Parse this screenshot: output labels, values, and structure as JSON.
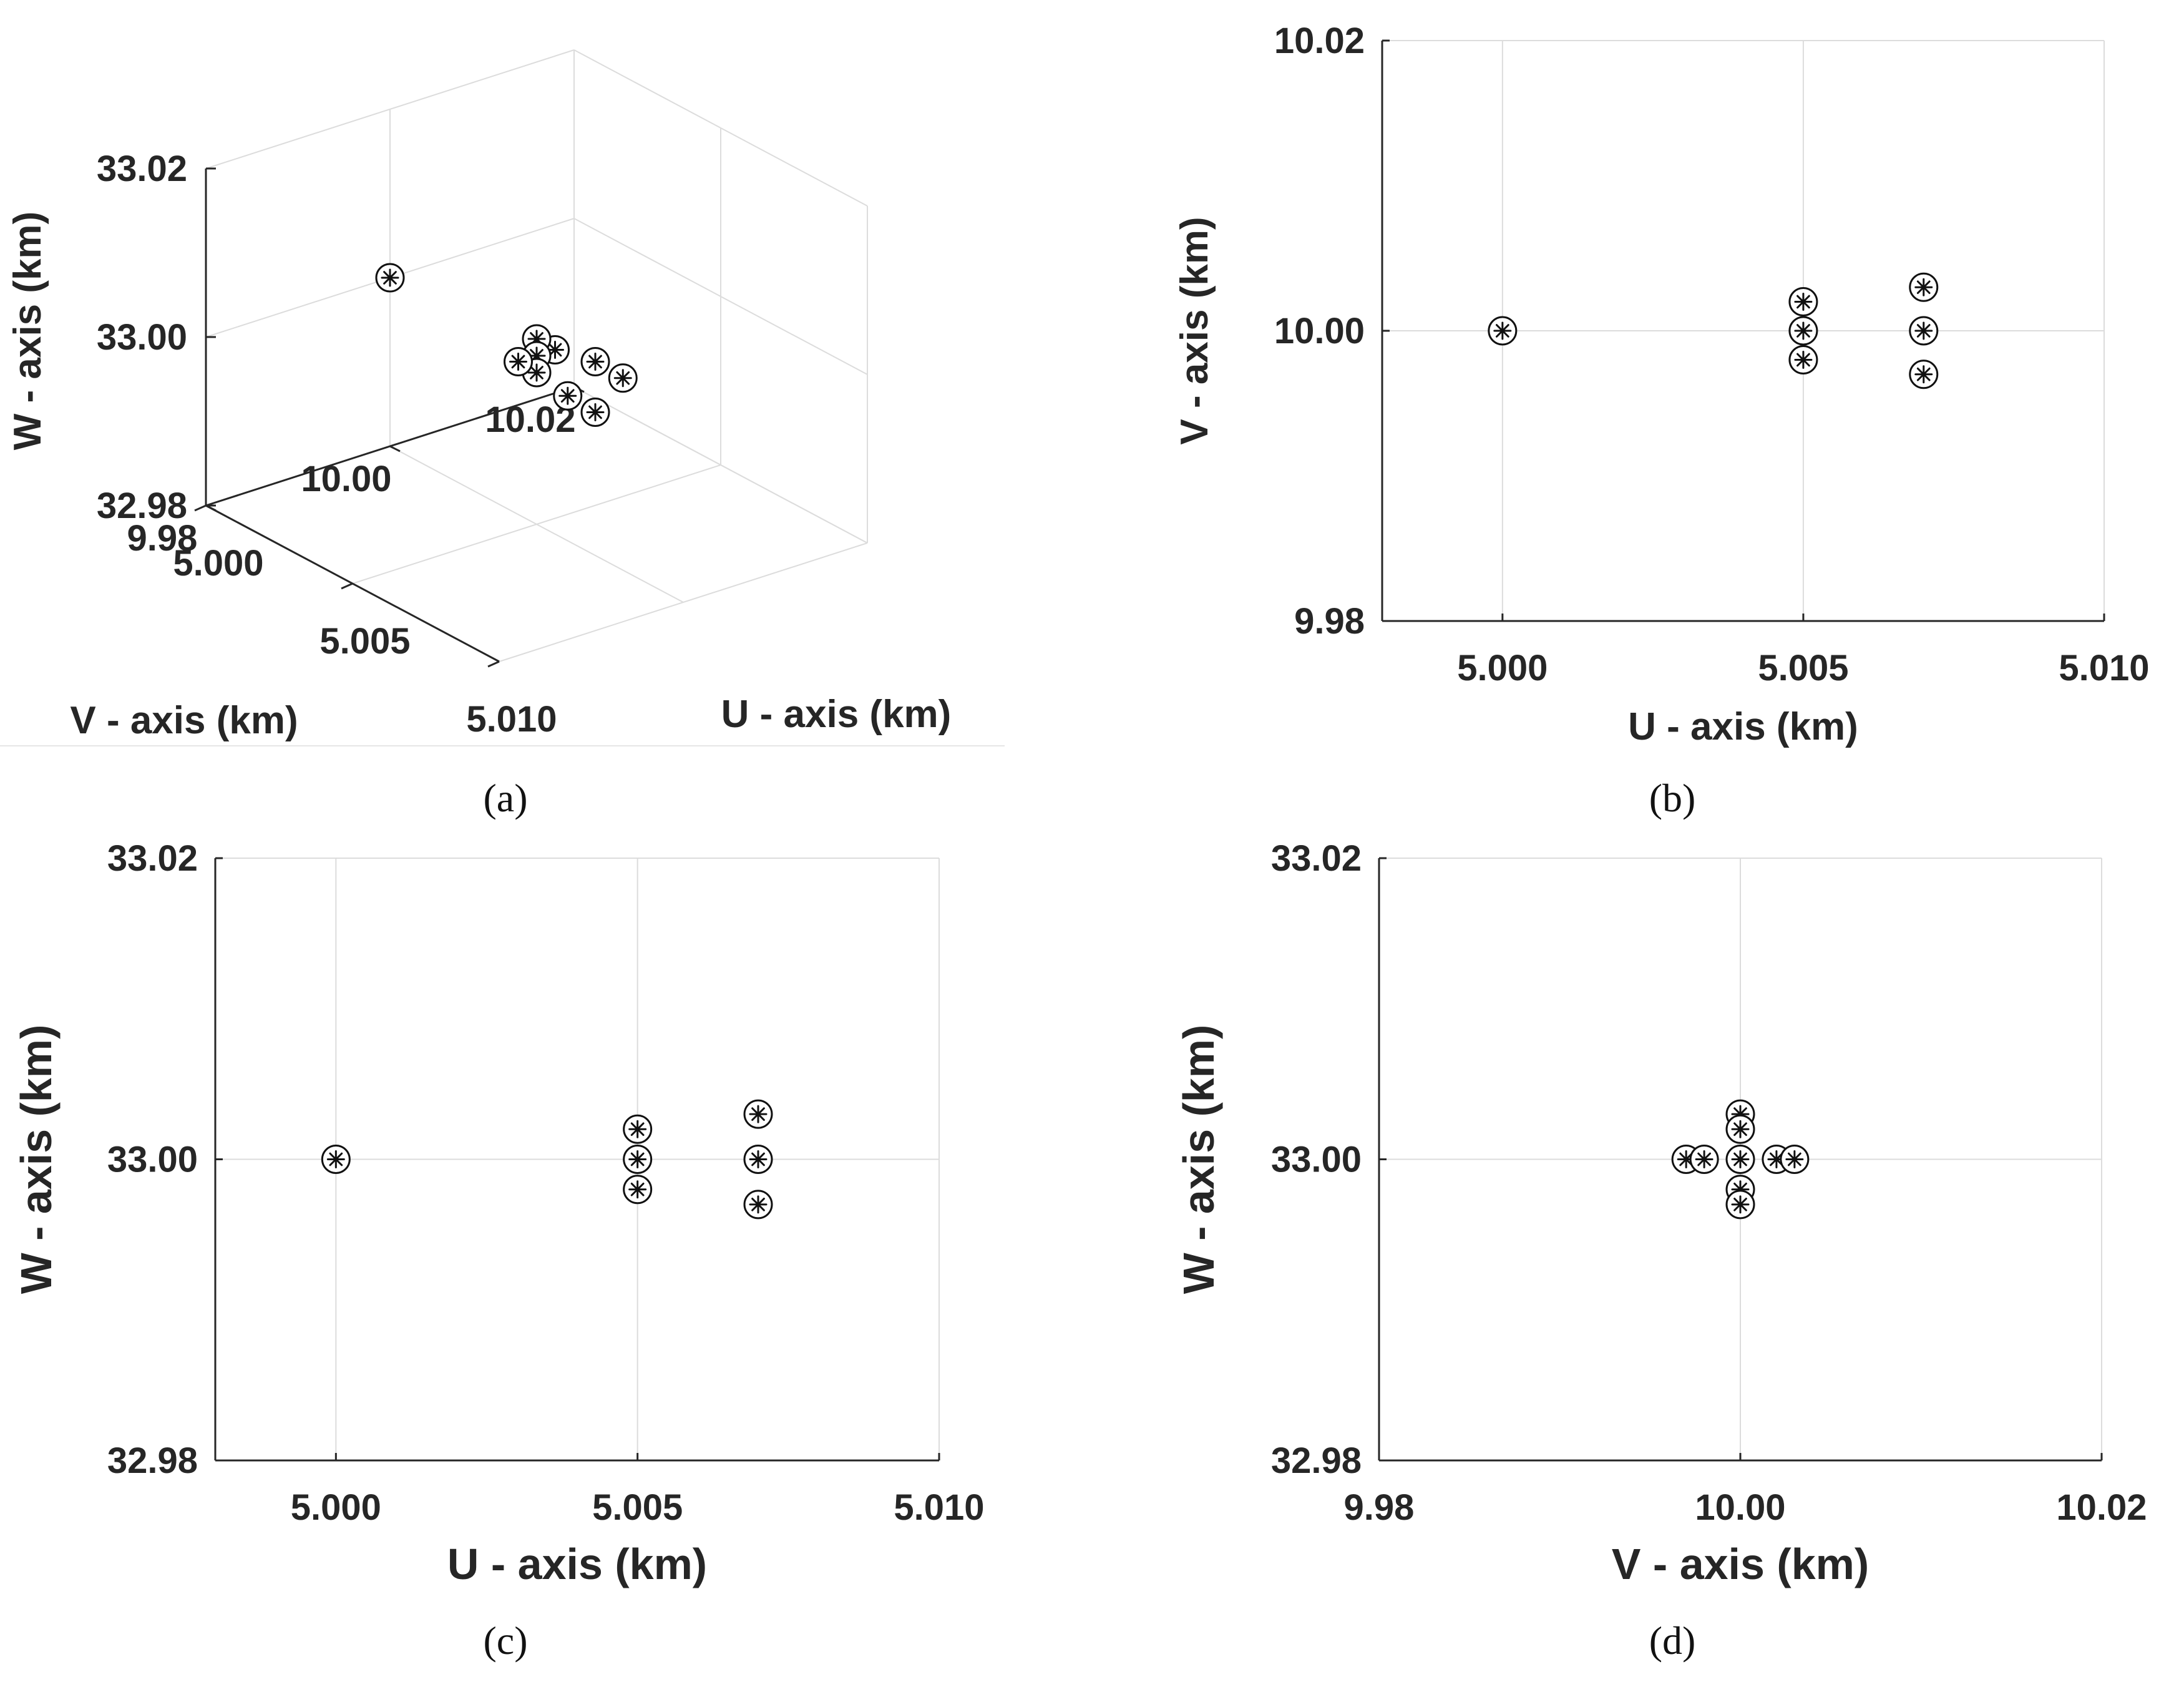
{
  "chart_data": [
    {
      "id": "a",
      "type": "scatter3d",
      "panel_label": "(a)",
      "xlabel": "U - axis (km)",
      "ylabel": "V - axis (km)",
      "zlabel": "W - axis (km)",
      "xlim": [
        5.0,
        5.01
      ],
      "ylim": [
        9.98,
        10.02
      ],
      "zlim": [
        32.98,
        33.02
      ],
      "x_ticks": [
        "5.000",
        "5.005",
        "5.010"
      ],
      "y_ticks": [
        "9.98",
        "10.00",
        "10.02"
      ],
      "z_ticks": [
        "32.98",
        "33.00",
        "33.02"
      ],
      "grid": true,
      "marker": "circled-asterisk",
      "points": [
        {
          "u": 5.0,
          "v": 10.0,
          "w": 33.0
        },
        {
          "u": 5.005,
          "v": 10.002,
          "w": 33.0
        },
        {
          "u": 5.005,
          "v": 10.0,
          "w": 33.002
        },
        {
          "u": 5.005,
          "v": 10.0,
          "w": 33.0
        },
        {
          "u": 5.005,
          "v": 10.0,
          "w": 32.998
        },
        {
          "u": 5.005,
          "v": 9.998,
          "w": 33.0
        },
        {
          "u": 5.007,
          "v": 10.003,
          "w": 33.0
        },
        {
          "u": 5.007,
          "v": 10.0,
          "w": 33.003
        },
        {
          "u": 5.007,
          "v": 10.0,
          "w": 32.997
        },
        {
          "u": 5.007,
          "v": 9.997,
          "w": 33.0
        }
      ]
    },
    {
      "id": "b",
      "type": "scatter",
      "panel_label": "(b)",
      "xlabel": "U - axis (km)",
      "ylabel": "V - axis (km)",
      "xlim": [
        4.998,
        5.01
      ],
      "ylim": [
        9.98,
        10.02
      ],
      "x_ticks": [
        {
          "value": 5.0,
          "label": "5.000"
        },
        {
          "value": 5.005,
          "label": "5.005"
        },
        {
          "value": 5.01,
          "label": "5.010"
        }
      ],
      "y_ticks": [
        {
          "value": 9.98,
          "label": "9.98"
        },
        {
          "value": 10.0,
          "label": "10.00"
        },
        {
          "value": 10.02,
          "label": "10.02"
        }
      ],
      "grid": true,
      "marker": "circled-asterisk",
      "points": [
        {
          "x": 5.0,
          "y": 10.0
        },
        {
          "x": 5.005,
          "y": 10.002
        },
        {
          "x": 5.005,
          "y": 10.0
        },
        {
          "x": 5.005,
          "y": 9.998
        },
        {
          "x": 5.007,
          "y": 10.003
        },
        {
          "x": 5.007,
          "y": 10.0
        },
        {
          "x": 5.007,
          "y": 9.997
        }
      ]
    },
    {
      "id": "c",
      "type": "scatter",
      "panel_label": "(c)",
      "xlabel": "U - axis (km)",
      "ylabel": "W - axis (km)",
      "xlim": [
        4.998,
        5.01
      ],
      "ylim": [
        32.98,
        33.02
      ],
      "x_ticks": [
        {
          "value": 5.0,
          "label": "5.000"
        },
        {
          "value": 5.005,
          "label": "5.005"
        },
        {
          "value": 5.01,
          "label": "5.010"
        }
      ],
      "y_ticks": [
        {
          "value": 32.98,
          "label": "32.98"
        },
        {
          "value": 33.0,
          "label": "33.00"
        },
        {
          "value": 33.02,
          "label": "33.02"
        }
      ],
      "grid": true,
      "marker": "circled-asterisk",
      "points": [
        {
          "x": 5.0,
          "y": 33.0
        },
        {
          "x": 5.005,
          "y": 33.002
        },
        {
          "x": 5.005,
          "y": 33.0
        },
        {
          "x": 5.005,
          "y": 32.998
        },
        {
          "x": 5.007,
          "y": 33.003
        },
        {
          "x": 5.007,
          "y": 33.0
        },
        {
          "x": 5.007,
          "y": 32.997
        }
      ]
    },
    {
      "id": "d",
      "type": "scatter",
      "panel_label": "(d)",
      "xlabel": "V - axis (km)",
      "ylabel": "W - axis (km)",
      "xlim": [
        9.98,
        10.02
      ],
      "ylim": [
        32.98,
        33.02
      ],
      "x_ticks": [
        {
          "value": 9.98,
          "label": "9.98"
        },
        {
          "value": 10.0,
          "label": "10.00"
        },
        {
          "value": 10.02,
          "label": "10.02"
        }
      ],
      "y_ticks": [
        {
          "value": 32.98,
          "label": "32.98"
        },
        {
          "value": 33.0,
          "label": "33.00"
        },
        {
          "value": 33.02,
          "label": "33.02"
        }
      ],
      "grid": true,
      "marker": "circled-asterisk",
      "points": [
        {
          "x": 9.997,
          "y": 33.0
        },
        {
          "x": 9.998,
          "y": 33.0
        },
        {
          "x": 10.0,
          "y": 33.003
        },
        {
          "x": 10.0,
          "y": 33.002
        },
        {
          "x": 10.0,
          "y": 33.0
        },
        {
          "x": 10.0,
          "y": 32.998
        },
        {
          "x": 10.0,
          "y": 32.997
        },
        {
          "x": 10.002,
          "y": 33.0
        },
        {
          "x": 10.003,
          "y": 33.0
        }
      ]
    }
  ]
}
